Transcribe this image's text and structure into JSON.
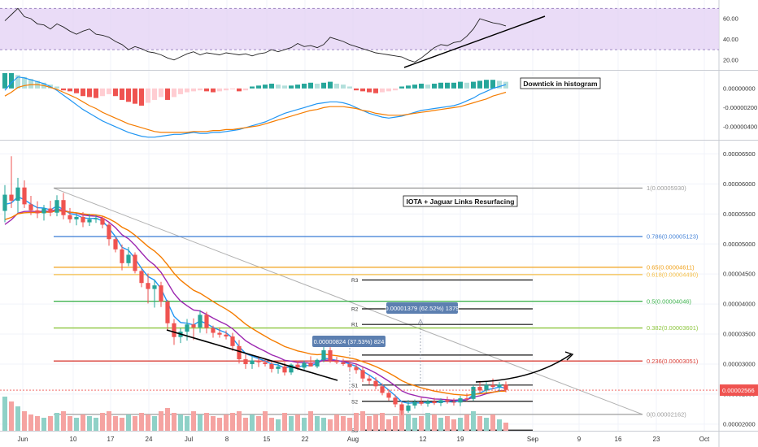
{
  "chart_data": {
    "type": "candlestick",
    "x_ticks": [
      "Jun",
      "10",
      "17",
      "24",
      "Jul",
      "8",
      "15",
      "22",
      "Aug",
      "12",
      "19",
      "Sep",
      "9",
      "16",
      "23",
      "Oct"
    ],
    "price_axis": {
      "ylim": [
        1.89e-05,
        6.68e-05
      ],
      "ticks": [
        "0.00006500",
        "0.00006000",
        "0.00005500",
        "0.00005000",
        "0.00004500",
        "0.00004000",
        "0.00003500",
        "0.00003000",
        "0.00002500",
        "0.00002000"
      ],
      "tick_values": [
        6.5e-05,
        6e-05,
        5.5e-05,
        5e-05,
        4.5e-05,
        4e-05,
        3.5e-05,
        3e-05,
        2.5e-05,
        2e-05
      ],
      "current_price": "0.00002566",
      "current_value": 2.566e-05
    },
    "rsi_axis": {
      "ylim": [
        12,
        75
      ],
      "ticks": [
        "60.00",
        "40.00",
        "20.00"
      ],
      "tick_values": [
        60,
        40,
        20
      ],
      "band": [
        30,
        70
      ]
    },
    "macd_axis": {
      "ylim": [
        -5.2e-06,
        1.6e-06
      ],
      "ticks": [
        "0.00000000",
        "-0.00000200",
        "-0.00000400"
      ],
      "tick_values": [
        0,
        -2e-06,
        -4e-06
      ]
    },
    "fib_levels": [
      {
        "label": "1(0.00005930)",
        "value": 5.93e-05,
        "color": "#9e9e9e"
      },
      {
        "label": "0.786(0.00005123)",
        "value": 5.123e-05,
        "color": "#4a86d8"
      },
      {
        "label": "0.65(0.00004611)",
        "value": 4.611e-05,
        "color": "#f0a21c"
      },
      {
        "label": "0.618(0.00004490)",
        "value": 4.49e-05,
        "color": "#f5c04a"
      },
      {
        "label": "0.5(0.00004046)",
        "value": 4.046e-05,
        "color": "#3fb34f"
      },
      {
        "label": "0.382(0.00003601)",
        "value": 3.601e-05,
        "color": "#8dc63f"
      },
      {
        "label": "0.236(0.00003051)",
        "value": 3.051e-05,
        "color": "#d9413a"
      },
      {
        "label": "0(0.00002162)",
        "value": 2.162e-05,
        "color": "#9e9e9e"
      }
    ],
    "pivots": [
      {
        "label": "R3",
        "value": 4.4e-05
      },
      {
        "label": "R2",
        "value": 3.92e-05
      },
      {
        "label": "R1",
        "value": 3.66e-05
      },
      {
        "label": "",
        "value": 3.15e-05
      },
      {
        "label": "S1",
        "value": 2.65e-05
      },
      {
        "label": "S2",
        "value": 2.38e-05
      },
      {
        "label": "S3",
        "value": 1.9e-05
      }
    ],
    "annotations": {
      "histogram_note": "Downtick in histogram",
      "main_note": "IOTA + Jaguar Links Resurfacing",
      "measure_up": "0.00001379 (62.52%) 1379",
      "measure_down": "0.00000824 (37.53%) 824"
    },
    "candles": [
      [
        5.55e-05,
        5.98e-05,
        5.36e-05,
        5.82e-05
      ],
      [
        5.82e-05,
        6.46e-05,
        5.6e-05,
        5.72e-05
      ],
      [
        5.72e-05,
        6.1e-05,
        5.52e-05,
        5.94e-05
      ],
      [
        5.94e-05,
        6.06e-05,
        5.6e-05,
        5.66e-05
      ],
      [
        5.66e-05,
        5.8e-05,
        5.48e-05,
        5.56e-05
      ],
      [
        5.56e-05,
        5.71e-05,
        5.43e-05,
        5.51e-05
      ],
      [
        5.51e-05,
        5.65e-05,
        5.39e-05,
        5.59e-05
      ],
      [
        5.59e-05,
        5.72e-05,
        5.46e-05,
        5.52e-05
      ],
      [
        5.52e-05,
        5.81e-05,
        5.46e-05,
        5.73e-05
      ],
      [
        5.73e-05,
        5.85e-05,
        5.41e-05,
        5.48e-05
      ],
      [
        5.48e-05,
        5.6e-05,
        5.35e-05,
        5.41e-05
      ],
      [
        5.41e-05,
        5.51e-05,
        5.31e-05,
        5.45e-05
      ],
      [
        5.45e-05,
        5.53e-05,
        5.28e-05,
        5.36e-05
      ],
      [
        5.36e-05,
        5.5e-05,
        5.3e-05,
        5.41e-05
      ],
      [
        5.41e-05,
        5.48e-05,
        5.35e-05,
        5.43e-05
      ],
      [
        5.43e-05,
        5.46e-05,
        5.26e-05,
        5.32e-05
      ],
      [
        5.32e-05,
        5.36e-05,
        4.97e-05,
        5.08e-05
      ],
      [
        5.08e-05,
        5.12e-05,
        4.86e-05,
        4.91e-05
      ],
      [
        4.91e-05,
        4.99e-05,
        4.56e-05,
        4.68e-05
      ],
      [
        4.68e-05,
        4.95e-05,
        4.63e-05,
        4.82e-05
      ],
      [
        4.82e-05,
        4.86e-05,
        4.51e-05,
        4.55e-05
      ],
      [
        4.55e-05,
        4.58e-05,
        4.28e-05,
        4.35e-05
      ],
      [
        4.35e-05,
        4.51e-05,
        4.01e-05,
        4.25e-05
      ],
      [
        4.25e-05,
        4.4e-05,
        3.94e-05,
        4.31e-05
      ],
      [
        4.31e-05,
        4.37e-05,
        3.95e-05,
        4.04e-05
      ],
      [
        4.04e-05,
        4.07e-05,
        3.57e-05,
        3.68e-05
      ],
      [
        3.68e-05,
        3.75e-05,
        3.32e-05,
        3.45e-05
      ],
      [
        3.45e-05,
        3.6e-05,
        3.35e-05,
        3.54e-05
      ],
      [
        3.54e-05,
        3.75e-05,
        3.39e-05,
        3.66e-05
      ],
      [
        3.66e-05,
        3.76e-05,
        3.4e-05,
        3.61e-05
      ],
      [
        3.61e-05,
        3.9e-05,
        3.52e-05,
        3.82e-05
      ],
      [
        3.82e-05,
        3.87e-05,
        3.51e-05,
        3.6e-05
      ],
      [
        3.6e-05,
        3.64e-05,
        3.44e-05,
        3.52e-05
      ],
      [
        3.52e-05,
        3.61e-05,
        3.44e-05,
        3.49e-05
      ],
      [
        3.49e-05,
        3.56e-05,
        3.41e-05,
        3.46e-05
      ],
      [
        3.46e-05,
        3.52e-05,
        3.22e-05,
        3.3e-05
      ],
      [
        3.3e-05,
        3.4e-05,
        3.01e-05,
        3.08e-05
      ],
      [
        3.08e-05,
        3.16e-05,
        2.92e-05,
        3e-05
      ],
      [
        3e-05,
        3.12e-05,
        2.92e-05,
        3.06e-05
      ],
      [
        3.06e-05,
        3.13e-05,
        2.95e-05,
        3.03e-05
      ],
      [
        3.03e-05,
        3.1e-05,
        2.96e-05,
        3e-05
      ],
      [
        3e-05,
        3.06e-05,
        2.86e-05,
        2.92e-05
      ],
      [
        2.92e-05,
        3.01e-05,
        2.84e-05,
        2.96e-05
      ],
      [
        2.96e-05,
        3.03e-05,
        2.81e-05,
        2.86e-05
      ],
      [
        2.86e-05,
        3.01e-05,
        2.82e-05,
        2.99e-05
      ],
      [
        2.99e-05,
        3.06e-05,
        2.9e-05,
        2.94e-05
      ],
      [
        2.94e-05,
        3.06e-05,
        2.9e-05,
        3.02e-05
      ],
      [
        3.02e-05,
        3.13e-05,
        2.96e-05,
        2.96e-05
      ],
      [
        2.96e-05,
        3.09e-05,
        2.93e-05,
        3.07e-05
      ],
      [
        3.07e-05,
        3.3e-05,
        3.03e-05,
        3.23e-05
      ],
      [
        3.23e-05,
        3.28e-05,
        3.02e-05,
        3.06e-05
      ],
      [
        3.06e-05,
        3.12e-05,
        3e-05,
        3.03e-05
      ],
      [
        3.03e-05,
        3.09e-05,
        2.97e-05,
        3e-05
      ],
      [
        3e-05,
        3.05e-05,
        2.88e-05,
        2.95e-05
      ],
      [
        2.95e-05,
        3.01e-05,
        2.84e-05,
        2.9e-05
      ],
      [
        2.9e-05,
        2.95e-05,
        2.7e-05,
        2.76e-05
      ],
      [
        2.76e-05,
        2.82e-05,
        2.66e-05,
        2.72e-05
      ],
      [
        2.72e-05,
        2.78e-05,
        2.58e-05,
        2.63e-05
      ],
      [
        2.63e-05,
        2.68e-05,
        2.48e-05,
        2.52e-05
      ],
      [
        2.52e-05,
        2.58e-05,
        2.39e-05,
        2.44e-05
      ],
      [
        2.44e-05,
        2.49e-05,
        2.28e-05,
        2.33e-05
      ],
      [
        2.33e-05,
        2.37e-05,
        2.15e-05,
        2.22e-05
      ],
      [
        2.22e-05,
        2.4e-05,
        2.19e-05,
        2.31e-05
      ],
      [
        2.31e-05,
        2.41e-05,
        2.26e-05,
        2.37e-05
      ],
      [
        2.37e-05,
        2.44e-05,
        2.31e-05,
        2.34e-05
      ],
      [
        2.34e-05,
        2.41e-05,
        2.29e-05,
        2.38e-05
      ],
      [
        2.38e-05,
        2.44e-05,
        2.32e-05,
        2.35e-05
      ],
      [
        2.35e-05,
        2.43e-05,
        2.3e-05,
        2.4e-05
      ],
      [
        2.4e-05,
        2.46e-05,
        2.34e-05,
        2.37e-05
      ],
      [
        2.37e-05,
        2.43e-05,
        2.31e-05,
        2.36e-05
      ],
      [
        2.36e-05,
        2.47e-05,
        2.3e-05,
        2.43e-05
      ],
      [
        2.43e-05,
        2.51e-05,
        2.38e-05,
        2.42e-05
      ],
      [
        2.42e-05,
        2.65e-05,
        2.39e-05,
        2.62e-05
      ],
      [
        2.62e-05,
        2.72e-05,
        2.51e-05,
        2.56e-05
      ],
      [
        2.56e-05,
        2.71e-05,
        2.52e-05,
        2.65e-05
      ],
      [
        2.65e-05,
        2.76e-05,
        2.58e-05,
        2.62e-05
      ],
      [
        2.62e-05,
        2.7e-05,
        2.54e-05,
        2.66e-05
      ],
      [
        2.66e-05,
        2.71e-05,
        2.53e-05,
        2.57e-05
      ]
    ],
    "volume": [
      21,
      18,
      15,
      12,
      10,
      9,
      8,
      9,
      11,
      12,
      9,
      8,
      10,
      9,
      8,
      11,
      12,
      9,
      8,
      10,
      9,
      11,
      10,
      9,
      12,
      14,
      11,
      10,
      9,
      12,
      10,
      11,
      9,
      8,
      10,
      11,
      12,
      8,
      10,
      9,
      12,
      8,
      7,
      11,
      9,
      10,
      8,
      12,
      9,
      8,
      7,
      10,
      9,
      8,
      11,
      12,
      9,
      10,
      11,
      7,
      9,
      12,
      10,
      8,
      9,
      11,
      10,
      8,
      9,
      7,
      8,
      10,
      12,
      9,
      8,
      10,
      7,
      5
    ],
    "rsi": [
      58,
      64,
      70,
      62,
      60,
      55,
      54,
      50,
      55,
      52,
      48,
      45,
      48,
      50,
      45,
      44,
      42,
      38,
      35,
      30,
      33,
      31,
      28,
      27,
      25,
      22,
      20,
      23,
      26,
      28,
      25,
      27,
      26,
      25,
      27,
      26,
      25,
      26,
      24,
      26,
      27,
      30,
      28,
      30,
      32,
      36,
      33,
      34,
      32,
      35,
      42,
      40,
      38,
      35,
      33,
      31,
      29,
      27,
      26,
      25,
      24,
      23,
      20,
      18,
      22,
      27,
      32,
      35,
      34,
      37,
      38,
      43,
      50,
      60,
      58,
      56,
      55,
      53
    ],
    "macd_hist": [
      1.6,
      1.6,
      1.4,
      1.2,
      1.0,
      0.8,
      0.6,
      0.4,
      0.2,
      -0.2,
      -0.3,
      -0.5,
      -0.8,
      -0.9,
      -1.0,
      -0.8,
      -0.6,
      -0.8,
      -1.2,
      -1.4,
      -1.6,
      -1.8,
      -1.5,
      -1.2,
      -0.9,
      -1.2,
      -0.9,
      -0.6,
      -0.4,
      -0.3,
      -0.2,
      -0.3,
      -0.4,
      -0.3,
      -0.2,
      -0.1,
      -0.3,
      -0.2,
      0.2,
      0.3,
      0.4,
      0.5,
      0.4,
      0.3,
      0.3,
      0.4,
      0.5,
      0.6,
      0.5,
      0.6,
      0.7,
      0.5,
      0.4,
      0.2,
      -0.2,
      -0.3,
      -0.4,
      -0.5,
      -0.4,
      -0.3,
      -0.2,
      0.2,
      0.3,
      0.4,
      0.5,
      0.4,
      0.5,
      0.6,
      0.6,
      0.6,
      0.7,
      0.6,
      0.7,
      0.8,
      0.9,
      0.9,
      0.8,
      0.7
    ],
    "macd_fast": [
      -0.2,
      0.6,
      1.2,
      1.1,
      0.9,
      0.7,
      0.5,
      0.2,
      -0.2,
      -0.7,
      -1.2,
      -1.7,
      -2.2,
      -2.6,
      -3.0,
      -3.4,
      -3.7,
      -4.0,
      -4.3,
      -4.6,
      -4.8,
      -5.0,
      -5.1,
      -5.1,
      -5.0,
      -4.9,
      -4.8,
      -4.8,
      -4.7,
      -4.6,
      -4.7,
      -4.7,
      -4.6,
      -4.6,
      -4.5,
      -4.4,
      -4.3,
      -4.1,
      -3.9,
      -3.7,
      -3.5,
      -3.2,
      -2.9,
      -2.6,
      -2.4,
      -2.2,
      -2.0,
      -1.8,
      -1.6,
      -1.5,
      -1.4,
      -1.4,
      -1.5,
      -1.7,
      -2.0,
      -2.3,
      -2.6,
      -2.8,
      -3.0,
      -3.1,
      -3.0,
      -2.9,
      -2.7,
      -2.5,
      -2.3,
      -2.2,
      -2.1,
      -2.0,
      -1.9,
      -1.8,
      -1.6,
      -1.3,
      -1.0,
      -0.6,
      -0.3,
      0.0,
      0.2,
      0.4
    ],
    "macd_slow": [
      -0.8,
      -0.4,
      0.1,
      0.3,
      0.4,
      0.4,
      0.3,
      0.1,
      -0.1,
      -0.4,
      -0.7,
      -1.0,
      -1.4,
      -1.8,
      -2.1,
      -2.5,
      -2.8,
      -3.1,
      -3.4,
      -3.7,
      -3.9,
      -4.1,
      -4.3,
      -4.5,
      -4.6,
      -4.6,
      -4.6,
      -4.6,
      -4.6,
      -4.5,
      -4.5,
      -4.5,
      -4.4,
      -4.4,
      -4.3,
      -4.3,
      -4.2,
      -4.1,
      -4.0,
      -3.9,
      -3.7,
      -3.5,
      -3.3,
      -3.1,
      -2.9,
      -2.7,
      -2.5,
      -2.3,
      -2.2,
      -2.0,
      -1.9,
      -1.9,
      -1.9,
      -2.0,
      -2.1,
      -2.3,
      -2.4,
      -2.6,
      -2.7,
      -2.8,
      -2.8,
      -2.8,
      -2.7,
      -2.6,
      -2.5,
      -2.4,
      -2.3,
      -2.2,
      -2.1,
      -2.0,
      -1.9,
      -1.7,
      -1.5,
      -1.3,
      -1.1,
      -0.8,
      -0.6,
      -0.4
    ],
    "colors": {
      "up": "#26a69a",
      "down": "#ef5350",
      "ema_fast": "#2196f3",
      "ema_mid": "#9c27b0",
      "ema_slow": "#f57c00",
      "rsi_band": "#e5d3f5",
      "vol_up": "#8fd1c7",
      "vol_down": "#f5a3a1"
    }
  }
}
